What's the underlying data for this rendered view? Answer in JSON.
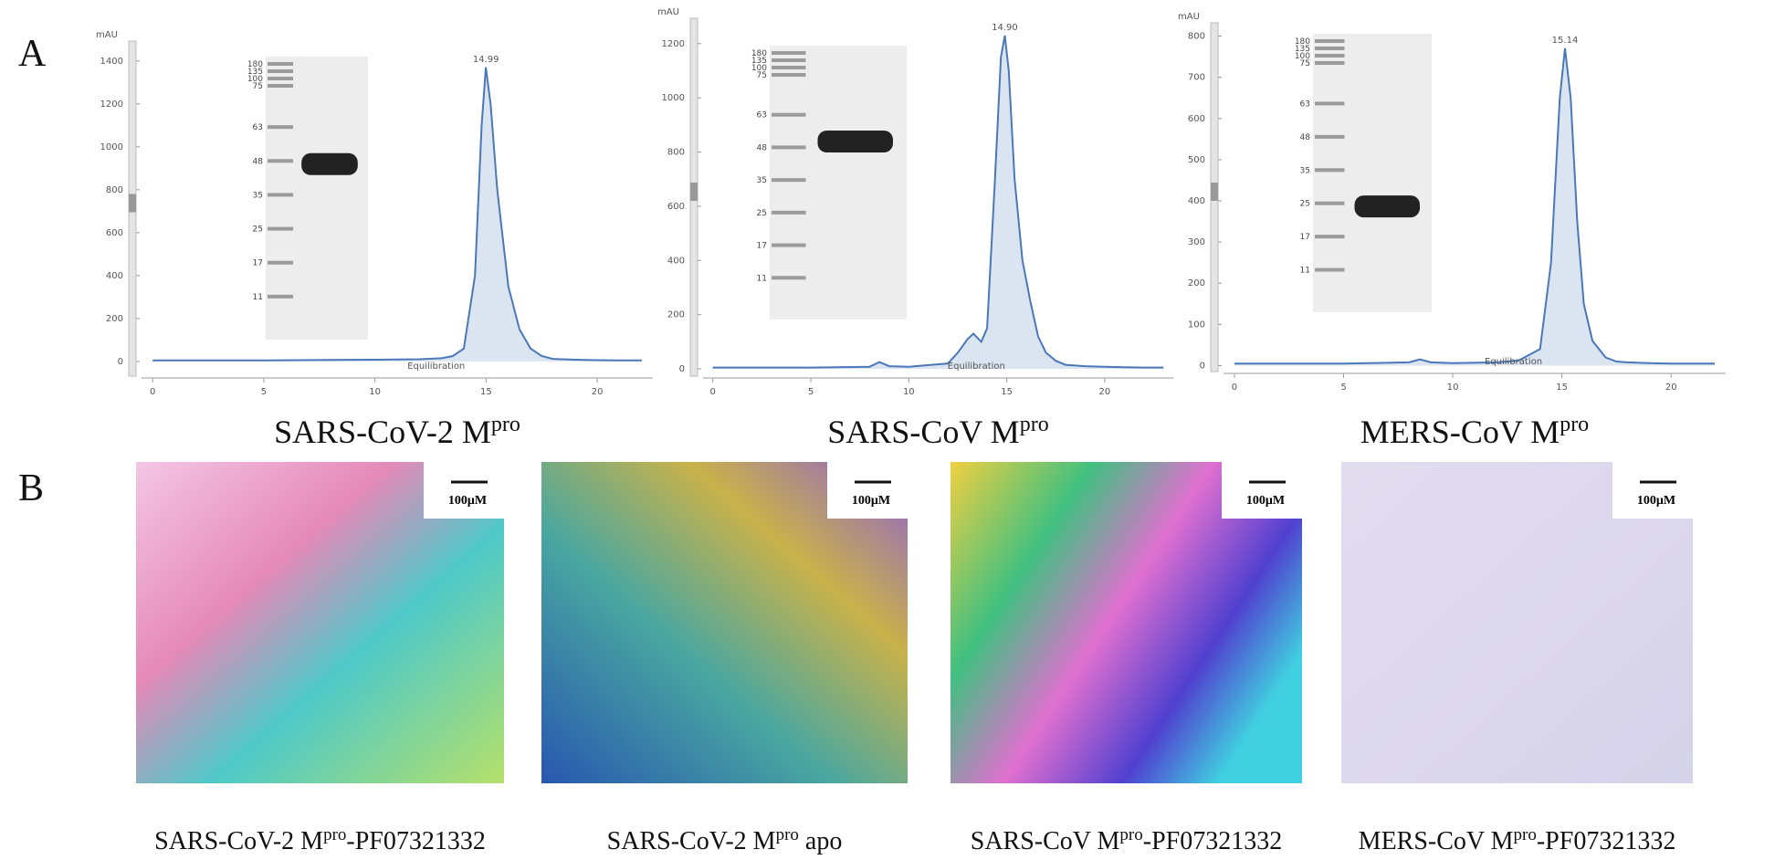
{
  "panel_labels": [
    "A",
    "B"
  ],
  "chart_data": [
    {
      "type": "line",
      "y_label": "mAU",
      "peak_label": "14.99",
      "annotation": "Equilibration",
      "color": "#4a78b8",
      "title": {
        "main": "SARS-CoV-2 M",
        "sup": "pro"
      },
      "x": [
        0,
        5,
        10,
        12,
        13,
        13.5,
        14,
        14.5,
        14.8,
        14.99,
        15.2,
        15.5,
        16,
        16.5,
        17,
        17.5,
        18,
        19,
        20,
        21,
        22
      ],
      "values": [
        5,
        5,
        8,
        10,
        15,
        25,
        60,
        400,
        1100,
        1370,
        1200,
        800,
        350,
        150,
        60,
        25,
        12,
        8,
        6,
        5,
        5
      ],
      "xlim": [
        -0.5,
        22.5
      ],
      "ylim": [
        -60,
        1450
      ],
      "xticks": [
        0,
        5,
        10,
        15,
        20
      ],
      "yticks": [
        0,
        200,
        400,
        600,
        800,
        1000,
        1200,
        1400
      ]
    },
    {
      "type": "line",
      "y_label": "mAU",
      "peak_label": "14.90",
      "annotation": "Equilibration",
      "color": "#4a78b8",
      "title": {
        "main": "SARS-CoV M",
        "sup": "pro"
      },
      "x": [
        0,
        5,
        8,
        8.5,
        9,
        10,
        12,
        12.5,
        13,
        13.3,
        13.7,
        14,
        14.4,
        14.7,
        14.9,
        15.1,
        15.4,
        15.8,
        16.2,
        16.6,
        17,
        17.5,
        18,
        19,
        20,
        21,
        22,
        23
      ],
      "values": [
        5,
        5,
        8,
        25,
        10,
        8,
        20,
        60,
        110,
        130,
        100,
        150,
        700,
        1150,
        1230,
        1100,
        700,
        400,
        250,
        120,
        60,
        30,
        15,
        10,
        8,
        6,
        5,
        5
      ],
      "xlim": [
        -0.5,
        23.5
      ],
      "ylim": [
        -20,
        1260
      ],
      "xticks": [
        0,
        5,
        10,
        15,
        20
      ],
      "yticks": [
        0,
        200,
        400,
        600,
        800,
        1000,
        1200
      ]
    },
    {
      "type": "line",
      "y_label": "mAU",
      "peak_label": "15.14",
      "annotation": "Equilibration",
      "color": "#4a78b8",
      "title": {
        "main": "MERS-CoV M",
        "sup": "pro"
      },
      "x": [
        0,
        5,
        8,
        8.5,
        9,
        10,
        12,
        13,
        14,
        14.5,
        14.9,
        15.14,
        15.4,
        15.7,
        16,
        16.4,
        17,
        17.5,
        18,
        19,
        20,
        21,
        22
      ],
      "values": [
        5,
        5,
        8,
        15,
        8,
        6,
        8,
        12,
        40,
        250,
        650,
        770,
        650,
        350,
        150,
        60,
        20,
        10,
        8,
        6,
        5,
        5,
        5
      ],
      "xlim": [
        -0.5,
        22.5
      ],
      "ylim": [
        -10,
        810
      ],
      "xticks": [
        0,
        5,
        10,
        15,
        20
      ],
      "yticks": [
        0,
        100,
        200,
        300,
        400,
        500,
        600,
        700,
        800
      ]
    }
  ],
  "gels": [
    {
      "markers": [
        "180",
        "135",
        "100",
        "75",
        "63",
        "48",
        "35",
        "25",
        "17",
        "11"
      ]
    },
    {
      "markers": [
        "180",
        "135",
        "100",
        "75",
        "63",
        "48",
        "35",
        "25",
        "17",
        "11"
      ]
    },
    {
      "markers": [
        "180",
        "135",
        "100",
        "75",
        "63",
        "48",
        "35",
        "25",
        "17",
        "11"
      ]
    }
  ],
  "crystals": [
    {
      "scale": "100μM",
      "caption": {
        "before": "SARS-CoV-2 M",
        "sup": "pro",
        "after": "-PF07321332"
      }
    },
    {
      "scale": "100μM",
      "caption": {
        "before": "SARS-CoV-2 M",
        "sup": "pro",
        "after": " apo"
      }
    },
    {
      "scale": "100μM",
      "caption": {
        "before": "SARS-CoV M",
        "sup": "pro",
        "after": "-PF07321332"
      }
    },
    {
      "scale": "100μM",
      "caption": {
        "before": "MERS-CoV M",
        "sup": "pro",
        "after": "-PF07321332"
      }
    }
  ]
}
